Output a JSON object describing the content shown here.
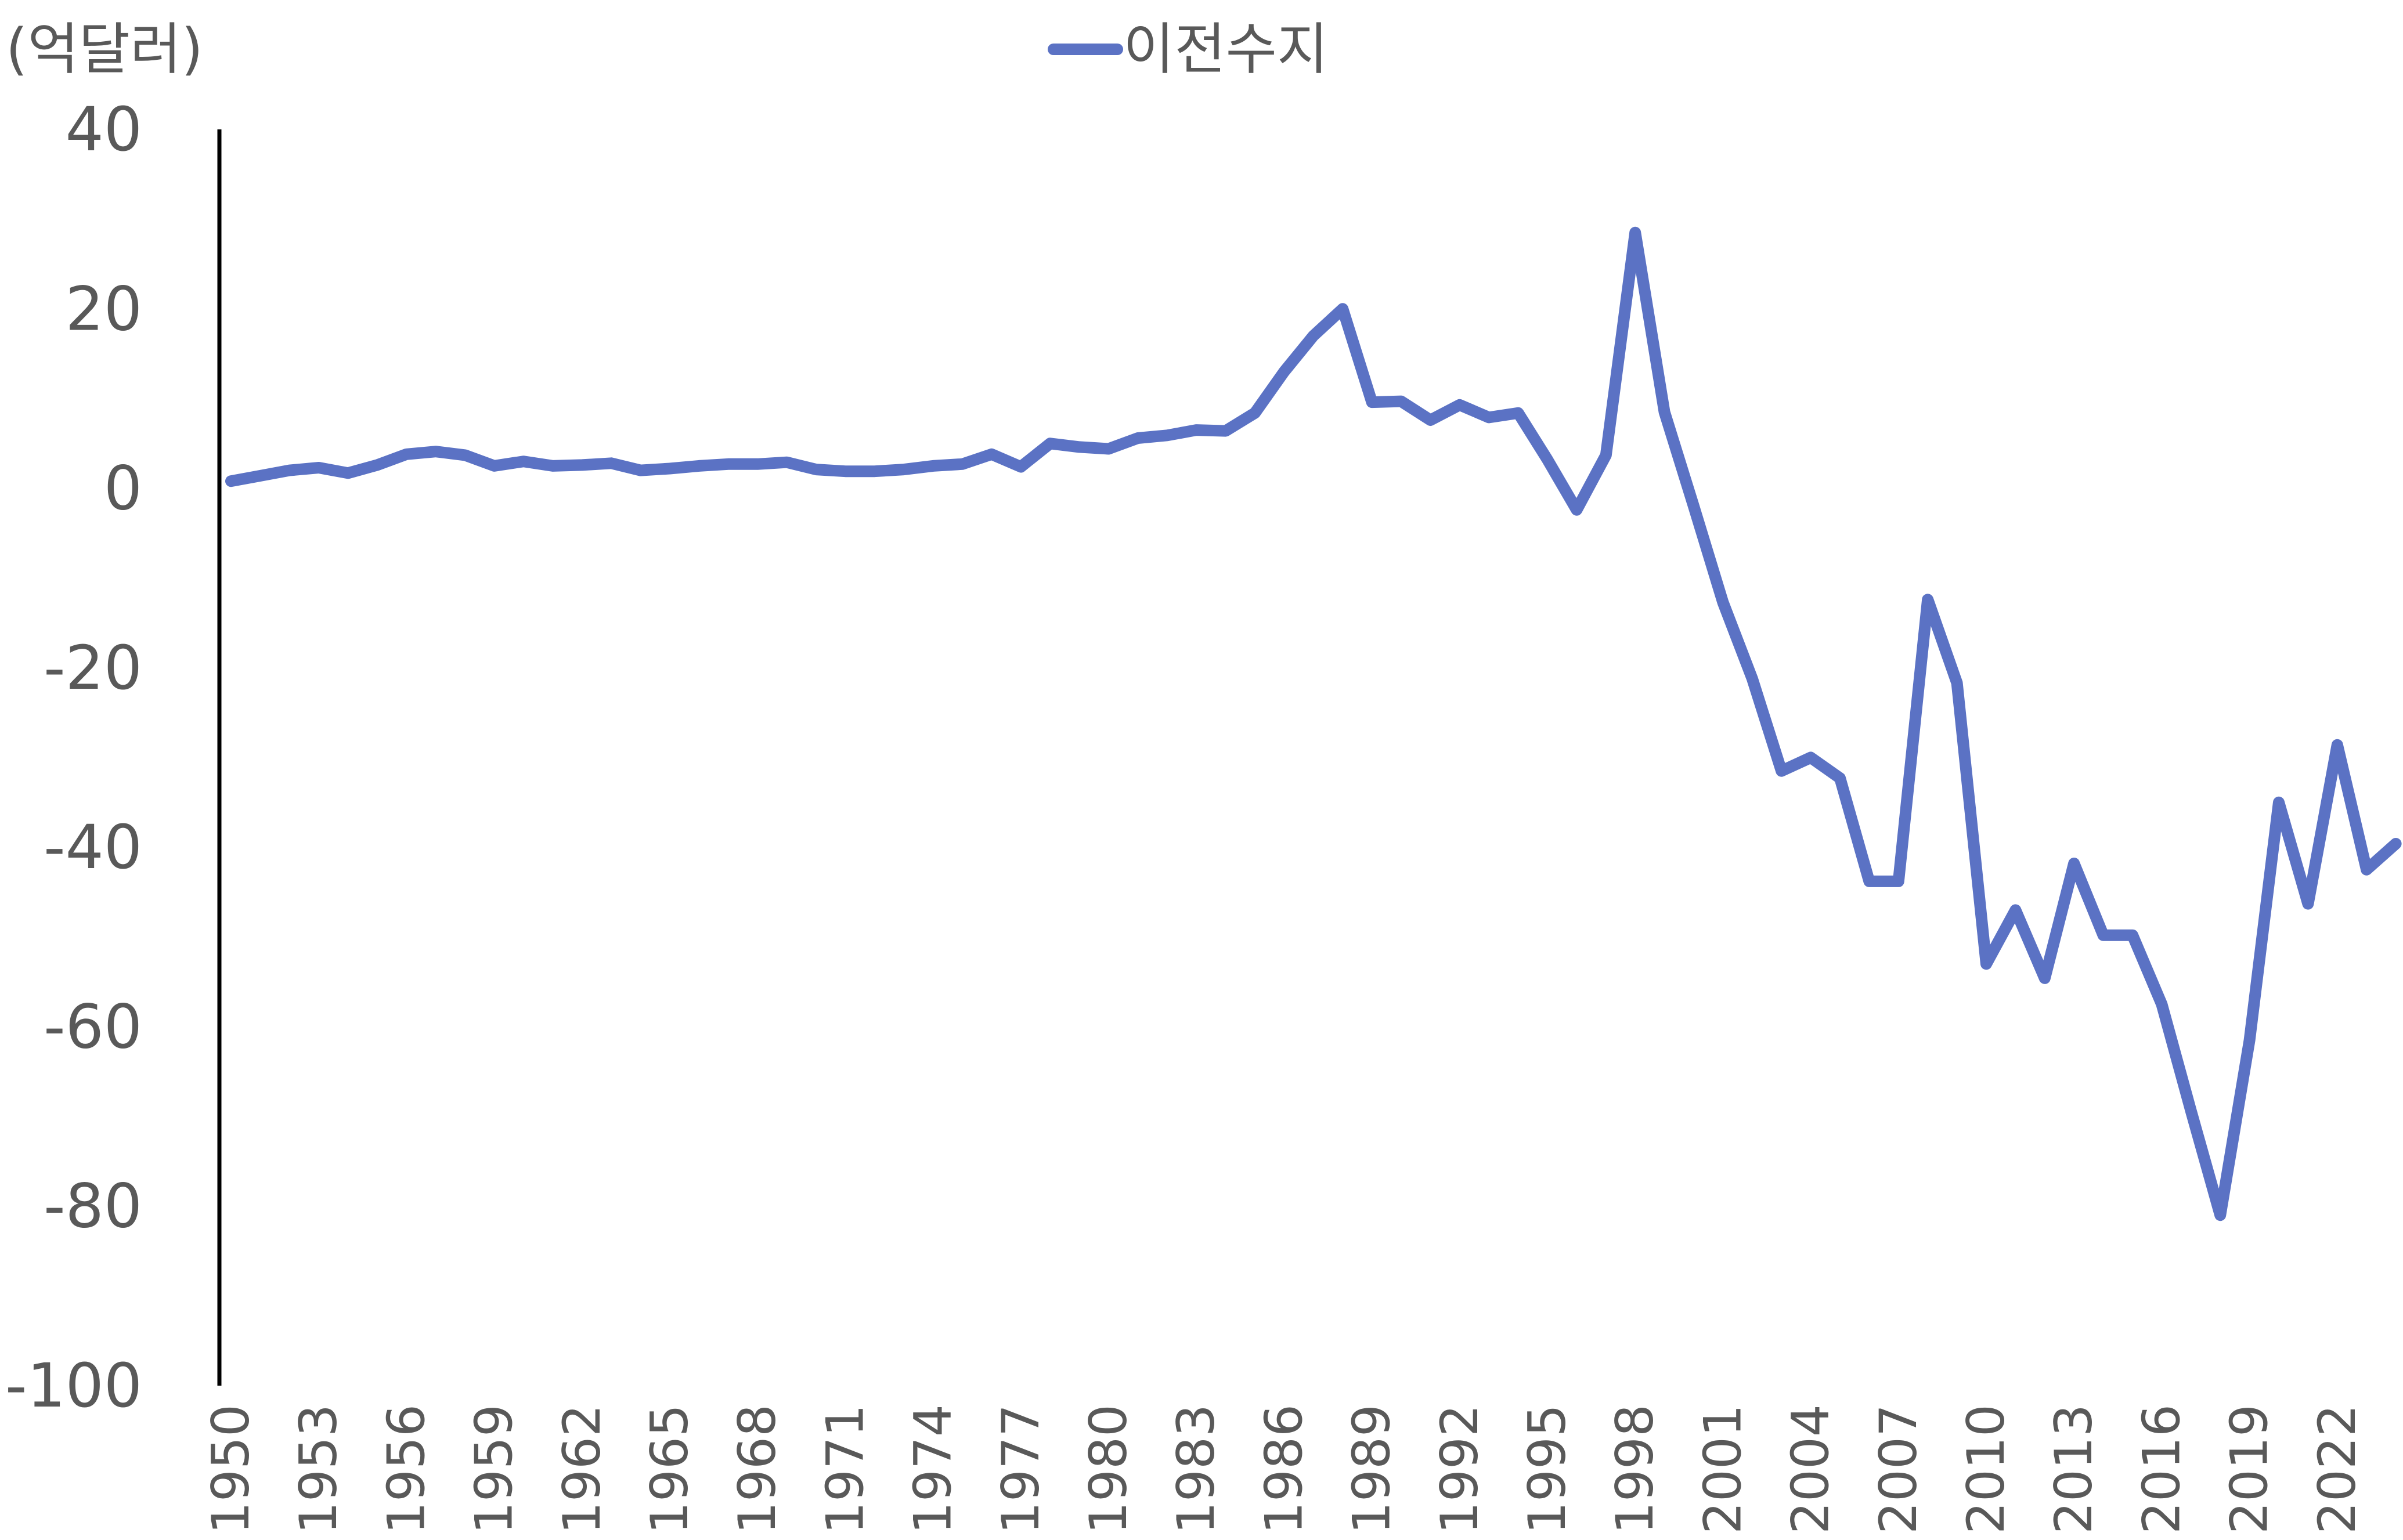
{
  "chart_data": {
    "type": "line",
    "unit_label": "(억달러)",
    "legend": {
      "label": "이전수지",
      "position": "top"
    },
    "series": [
      {
        "name": "이전수지",
        "color": "#5B72C4",
        "x": [
          1950,
          1951,
          1952,
          1953,
          1954,
          1955,
          1956,
          1957,
          1958,
          1959,
          1960,
          1961,
          1962,
          1963,
          1964,
          1965,
          1966,
          1967,
          1968,
          1969,
          1970,
          1971,
          1972,
          1973,
          1974,
          1975,
          1976,
          1977,
          1978,
          1979,
          1980,
          1981,
          1982,
          1983,
          1984,
          1985,
          1986,
          1987,
          1988,
          1989,
          1990,
          1991,
          1992,
          1993,
          1994,
          1995,
          1996,
          1997,
          1998,
          1999,
          2000,
          2001,
          2002,
          2003,
          2004,
          2005,
          2006,
          2007,
          2008,
          2009,
          2010,
          2011,
          2012,
          2013,
          2014,
          2015,
          2016,
          2017,
          2018,
          2019,
          2020,
          2021,
          2022,
          2023,
          2024
        ],
        "values": [
          0.8,
          1.4,
          2.0,
          2.3,
          1.7,
          2.6,
          3.8,
          4.1,
          3.7,
          2.5,
          3.0,
          2.5,
          2.6,
          2.8,
          2.0,
          2.2,
          2.5,
          2.7,
          2.7,
          2.9,
          2.1,
          1.9,
          1.9,
          2.1,
          2.5,
          2.7,
          3.8,
          2.4,
          5.0,
          4.6,
          4.4,
          5.6,
          5.9,
          6.5,
          6.4,
          8.4,
          13.0,
          17.0,
          20.0,
          9.6,
          9.7,
          7.6,
          9.3,
          7.9,
          8.4,
          3.2,
          -2.4,
          3.7,
          28.5,
          8.5,
          -2.0,
          -12.7,
          -21.2,
          -31.5,
          -30.0,
          -32.3,
          -43.8,
          -43.8,
          -12.4,
          -21.7,
          -53.0,
          -47.0,
          -54.6,
          -41.8,
          -49.8,
          -49.8,
          -57.5,
          -69.4,
          -81.0,
          -61.5,
          -35.0,
          -46.3,
          -28.6,
          -42.5,
          -39.6
        ]
      }
    ],
    "ylim": [
      -100,
      40
    ],
    "y_ticks": [
      {
        "value": 40,
        "label": "40"
      },
      {
        "value": 20,
        "label": "20"
      },
      {
        "value": 0,
        "label": "0"
      },
      {
        "value": -20,
        "label": "-20"
      },
      {
        "value": -40,
        "label": "-40"
      },
      {
        "value": -60,
        "label": "-60"
      },
      {
        "value": -80,
        "label": "-80"
      },
      {
        "value": -100,
        "label": "-100"
      }
    ],
    "x_tick_labels": [
      "1950",
      "1953",
      "1956",
      "1959",
      "1962",
      "1965",
      "1968",
      "1971",
      "1974",
      "1977",
      "1980",
      "1983",
      "1986",
      "1989",
      "1992",
      "1995",
      "1998",
      "2001",
      "2004",
      "2007",
      "2010",
      "2013",
      "2016",
      "2019",
      "2022"
    ],
    "grid": false
  }
}
